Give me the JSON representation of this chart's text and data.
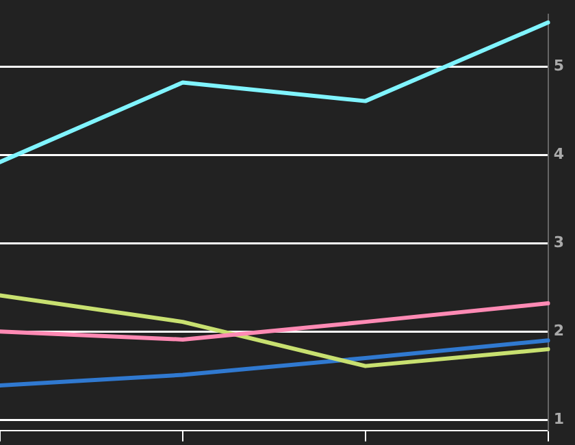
{
  "chart_data": {
    "type": "line",
    "categories": [
      null,
      null,
      null,
      null
    ],
    "ylim": [
      0.88,
      5.59
    ],
    "yticks": [
      1,
      2,
      3,
      4,
      5
    ],
    "grid": "y",
    "tick_labels": "y",
    "marker": "none",
    "line_style": "solid",
    "series": [
      {
        "color": "#80f4ff",
        "values": [
          3.92,
          4.82,
          4.61,
          5.5
        ]
      },
      {
        "color": "#ff8ab4",
        "values": [
          2.0,
          1.91,
          2.11,
          2.32
        ]
      },
      {
        "color": "#c8e070",
        "values": [
          2.41,
          2.11,
          1.61,
          1.8
        ]
      },
      {
        "color": "#3079d0",
        "values": [
          1.39,
          1.51,
          1.7,
          1.9
        ]
      }
    ]
  }
}
